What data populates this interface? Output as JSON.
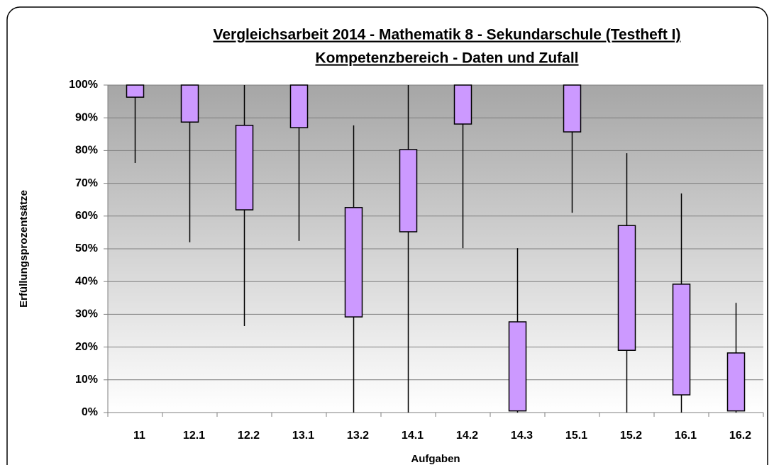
{
  "chart_data": {
    "type": "box",
    "title": "Vergleichsarbeit 2014 - Mathematik 8 - Sekundarschule (Testheft I)",
    "subtitle": "Kompetenzbereich - Daten und Zufall",
    "x_label": "Aufgaben",
    "y_label": "Erfüllungsprozentsätze",
    "categories": [
      "11",
      "12.1",
      "12.2",
      "13.1",
      "13.2",
      "14.1",
      "14.2",
      "14.3",
      "15.1",
      "15.2",
      "16.1",
      "16.2"
    ],
    "min": [
      76.2,
      52,
      26.4,
      52.4,
      0,
      0,
      50.2,
      0,
      61,
      0,
      0,
      0
    ],
    "q1": [
      96.3,
      88.7,
      61.9,
      87,
      29.2,
      55.2,
      88.1,
      0.5,
      85.7,
      19,
      5.4,
      0.5
    ],
    "q3": [
      100,
      100,
      87.7,
      100,
      62.6,
      80.3,
      100,
      27.7,
      100,
      57.1,
      39.2,
      18.2
    ],
    "max": [
      100,
      100,
      100,
      100,
      87.7,
      100,
      100,
      50.2,
      100,
      79.2,
      66.9,
      33.5
    ],
    "color": "#cc99ff",
    "ylim": [
      0,
      100
    ],
    "yticks": [
      {
        "value": 0,
        "label": "0%"
      },
      {
        "value": 10,
        "label": "10%"
      },
      {
        "value": 20,
        "label": "20%"
      },
      {
        "value": 30,
        "label": "30%"
      },
      {
        "value": 40,
        "label": "40%"
      },
      {
        "value": 50,
        "label": "50%"
      },
      {
        "value": 60,
        "label": "60%"
      },
      {
        "value": 70,
        "label": "70%"
      },
      {
        "value": 80,
        "label": "80%"
      },
      {
        "value": 90,
        "label": "90%"
      },
      {
        "value": 100,
        "label": "100%"
      }
    ],
    "grid": true
  }
}
